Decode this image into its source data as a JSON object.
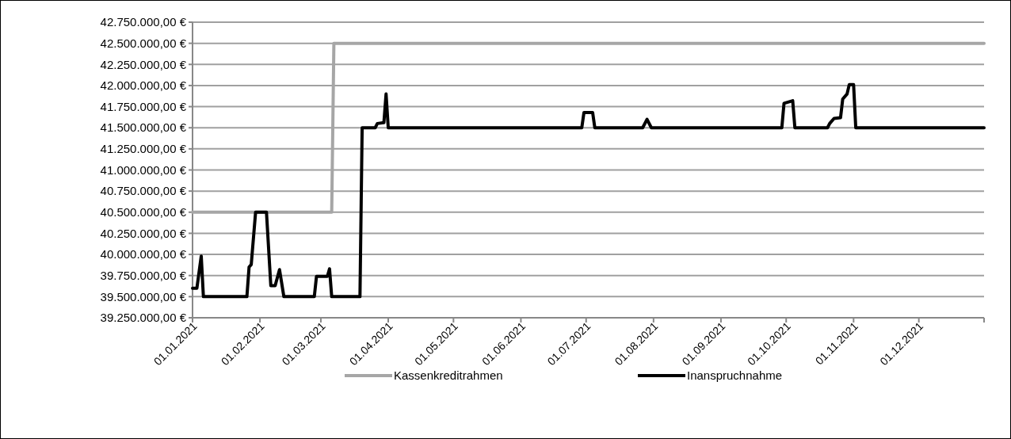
{
  "chart_data": {
    "type": "line",
    "xlim": [
      "2021-01-01",
      "2021-12-31"
    ],
    "xticks": [
      {
        "value": "2021-01-01",
        "label": "01.01.2021"
      },
      {
        "value": "2021-02-01",
        "label": "01.02.2021"
      },
      {
        "value": "2021-03-01",
        "label": "01.03.2021"
      },
      {
        "value": "2021-04-01",
        "label": "01.04.2021"
      },
      {
        "value": "2021-05-01",
        "label": "01.05.2021"
      },
      {
        "value": "2021-06-01",
        "label": "01.06.2021"
      },
      {
        "value": "2021-07-01",
        "label": "01.07.2021"
      },
      {
        "value": "2021-08-01",
        "label": "01.08.2021"
      },
      {
        "value": "2021-09-01",
        "label": "01.09.2021"
      },
      {
        "value": "2021-10-01",
        "label": "01.10.2021"
      },
      {
        "value": "2021-11-01",
        "label": "01.11.2021"
      },
      {
        "value": "2021-12-01",
        "label": "01.12.2021"
      },
      {
        "value": "2021-12-31",
        "label": null
      }
    ],
    "ylim": [
      39250000,
      42750000
    ],
    "yticks": [
      {
        "value": 39250000,
        "label": "39.250.000,00 €"
      },
      {
        "value": 39500000,
        "label": "39.500.000,00 €"
      },
      {
        "value": 39750000,
        "label": "39.750.000,00 €"
      },
      {
        "value": 40000000,
        "label": "40.000.000,00 €"
      },
      {
        "value": 40250000,
        "label": "40.250.000,00 €"
      },
      {
        "value": 40500000,
        "label": "40.500.000,00 €"
      },
      {
        "value": 40750000,
        "label": "40.750.000,00 €"
      },
      {
        "value": 41000000,
        "label": "41.000.000,00 €"
      },
      {
        "value": 41250000,
        "label": "41.250.000,00 €"
      },
      {
        "value": 41500000,
        "label": "41.500.000,00 €"
      },
      {
        "value": 41750000,
        "label": "41.750.000,00 €"
      },
      {
        "value": 42000000,
        "label": "42.000.000,00 €"
      },
      {
        "value": 42250000,
        "label": "42.250.000,00 €"
      },
      {
        "value": 42500000,
        "label": "42.500.000,00 €"
      },
      {
        "value": 42750000,
        "label": "42.750.000,00 €"
      }
    ],
    "grid": "y",
    "legend": "bottom",
    "marker": "none",
    "line_style": "solid",
    "series": [
      {
        "name": "Kassenkreditrahmen",
        "color": "#a6a6a6",
        "x": [
          "2021-01-01",
          "2021-03-06",
          "2021-03-07",
          "2021-12-31"
        ],
        "values": [
          40500000,
          40500000,
          42500000,
          42500000
        ]
      },
      {
        "name": "Inanspruchnahme",
        "color": "#000000",
        "x": [
          "2021-01-01",
          "2021-01-03",
          "2021-01-05",
          "2021-01-06",
          "2021-01-26",
          "2021-01-27",
          "2021-01-28",
          "2021-01-30",
          "2021-02-04",
          "2021-02-06",
          "2021-02-08",
          "2021-02-10",
          "2021-02-12",
          "2021-02-26",
          "2021-02-27",
          "2021-03-04",
          "2021-03-05",
          "2021-03-06",
          "2021-03-19",
          "2021-03-20",
          "2021-03-26",
          "2021-03-27",
          "2021-03-30",
          "2021-03-31",
          "2021-04-01",
          "2021-06-29",
          "2021-06-30",
          "2021-07-04",
          "2021-07-05",
          "2021-07-27",
          "2021-07-29",
          "2021-07-31",
          "2021-09-29",
          "2021-09-30",
          "2021-10-04",
          "2021-10-05",
          "2021-10-20",
          "2021-10-21",
          "2021-10-23",
          "2021-10-26",
          "2021-10-27",
          "2021-10-29",
          "2021-10-30",
          "2021-11-01",
          "2021-11-02",
          "2021-12-31"
        ],
        "values": [
          39600000,
          39600000,
          39980000,
          39500000,
          39500000,
          39850000,
          39880000,
          40500000,
          40500000,
          39630000,
          39630000,
          39820000,
          39500000,
          39500000,
          39740000,
          39740000,
          39830000,
          39500000,
          39500000,
          41500000,
          41500000,
          41550000,
          41560000,
          41900000,
          41500000,
          41500000,
          41680000,
          41680000,
          41500000,
          41500000,
          41600000,
          41500000,
          41500000,
          41790000,
          41820000,
          41500000,
          41500000,
          41550000,
          41610000,
          41620000,
          41840000,
          41900000,
          42010000,
          42010000,
          41500000,
          41500000
        ]
      }
    ]
  }
}
